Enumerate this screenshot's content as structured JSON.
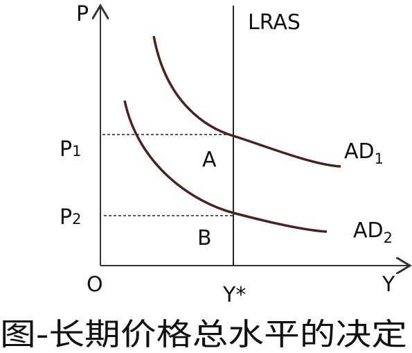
{
  "axes": {
    "y_label": "P",
    "x_label": "Y",
    "origin": "O"
  },
  "lines": {
    "lras": "LRAS"
  },
  "curves": {
    "ad1": {
      "text": "AD",
      "subscript": "1"
    },
    "ad2": {
      "text": "AD",
      "subscript": "2"
    }
  },
  "levels": {
    "p1": {
      "text": "P",
      "subscript": "1"
    },
    "p2": {
      "text": "P",
      "subscript": "2"
    }
  },
  "points": {
    "a": "A",
    "b": "B"
  },
  "y_star": "Y*",
  "caption": "图-长期价格总水平的决定"
}
